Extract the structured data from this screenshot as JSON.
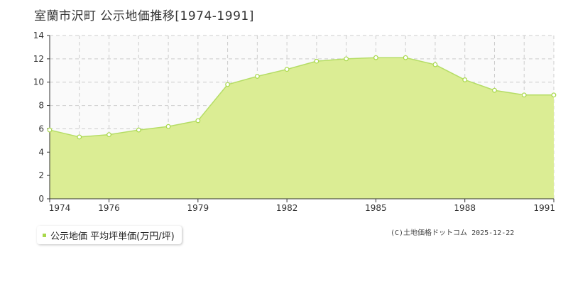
{
  "title": "室蘭市沢町  公示地価推移[1974-1991]",
  "legend_label": "公示地価 平均坪単価(万円/坪)",
  "copyright": "(C)土地価格ドットコム 2025-12-22",
  "colors": {
    "fill": "#dbed94",
    "line": "#b5dd66",
    "point": "#a8d84a",
    "grid": "#cccccc",
    "axis": "#333333"
  },
  "chart_data": {
    "type": "area",
    "title": "室蘭市沢町  公示地価推移[1974-1991]",
    "xlabel": "",
    "ylabel": "",
    "x": [
      1974,
      1975,
      1976,
      1977,
      1978,
      1979,
      1980,
      1981,
      1982,
      1983,
      1984,
      1985,
      1986,
      1987,
      1988,
      1989,
      1990,
      1991
    ],
    "series": [
      {
        "name": "公示地価 平均坪単価(万円/坪)",
        "values": [
          5.9,
          5.3,
          5.5,
          5.9,
          6.2,
          6.7,
          9.8,
          10.5,
          11.1,
          11.8,
          12.0,
          12.1,
          12.1,
          11.5,
          10.2,
          9.3,
          8.9,
          8.9
        ]
      }
    ],
    "xlim": [
      1974,
      1991
    ],
    "ylim": [
      0,
      14
    ],
    "x_ticks": [
      "1974",
      "1976",
      "1979",
      "1982",
      "1985",
      "1988",
      "1991"
    ],
    "y_ticks": [
      "0",
      "2",
      "4",
      "6",
      "8",
      "10",
      "12",
      "14"
    ],
    "grid": true,
    "legend_position": "bottom-left"
  }
}
